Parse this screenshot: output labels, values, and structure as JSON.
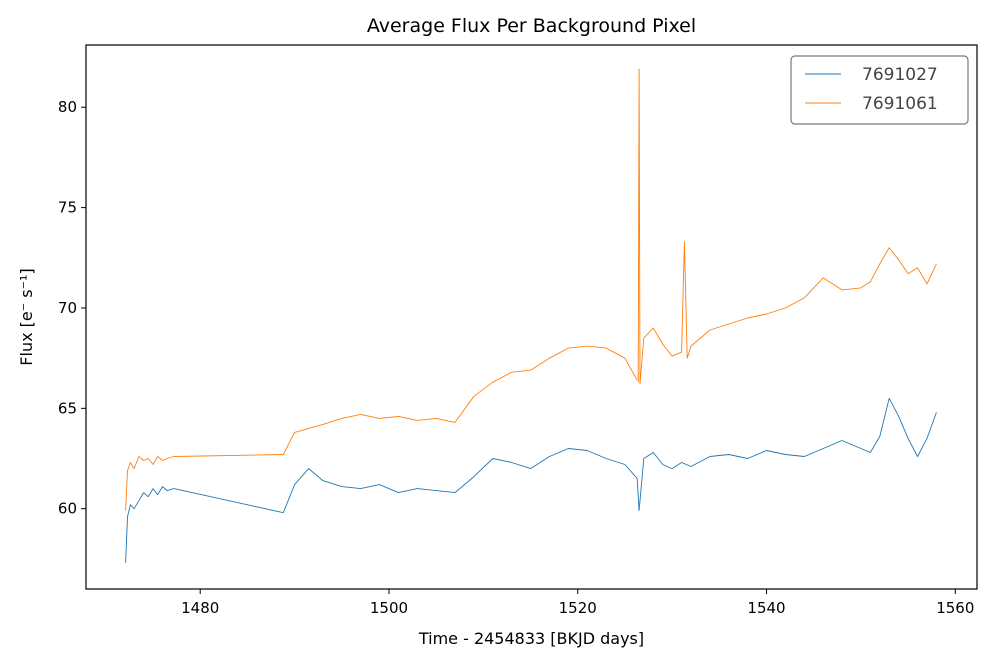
{
  "chart_data": {
    "type": "line",
    "title": "Average Flux Per Background Pixel",
    "xlabel": "Time - 2454833 [BKJD days]",
    "ylabel": "Flux [e⁻ s⁻¹]",
    "xlim": [
      1467.9,
      1562.3
    ],
    "ylim": [
      56.0,
      83.1
    ],
    "xticks": [
      1480,
      1500,
      1520,
      1540,
      1560
    ],
    "yticks": [
      60,
      65,
      70,
      75,
      80
    ],
    "grid": false,
    "legend_position": "top-right",
    "series": [
      {
        "name": "7691027",
        "color": "#1f77b4",
        "segments": [
          {
            "x": [
              1472.1,
              1472.3,
              1472.6,
              1473.0,
              1473.5,
              1474.0,
              1474.5,
              1475.0,
              1475.5,
              1476.0,
              1476.5,
              1477.2
            ],
            "y": [
              57.3,
              59.6,
              60.2,
              60.0,
              60.4,
              60.8,
              60.6,
              61.0,
              60.7,
              61.1,
              60.9,
              61.0
            ]
          },
          {
            "x": [
              1477.2,
              1488.8
            ],
            "y": [
              61.0,
              59.8
            ]
          },
          {
            "x": [
              1488.8,
              1490.0,
              1491.5,
              1493.0,
              1495.0,
              1497.0,
              1499.0,
              1501.0,
              1503.0,
              1505.0,
              1507.0,
              1509.0,
              1511.0,
              1513.0,
              1515.0,
              1517.0,
              1519.0,
              1521.0,
              1523.0,
              1525.0,
              1526.3
            ],
            "y": [
              59.8,
              61.2,
              62.0,
              61.4,
              61.1,
              61.0,
              61.2,
              60.8,
              61.0,
              60.9,
              60.8,
              61.6,
              62.5,
              62.3,
              62.0,
              62.6,
              63.0,
              62.9,
              62.5,
              62.2,
              61.5
            ]
          },
          {
            "x": [
              1526.3,
              1526.5
            ],
            "y": [
              61.5,
              59.9
            ]
          },
          {
            "x": [
              1526.5,
              1527.0,
              1528.0,
              1529.0,
              1530.0,
              1531.0,
              1532.0,
              1534.0,
              1536.0,
              1538.0,
              1540.0,
              1542.0,
              1544.0,
              1546.0,
              1548.0,
              1550.0,
              1551.0,
              1552.0,
              1553.0,
              1554.0,
              1555.0,
              1556.0,
              1557.0,
              1558.0
            ],
            "y": [
              59.9,
              62.5,
              62.8,
              62.2,
              62.0,
              62.3,
              62.1,
              62.6,
              62.7,
              62.5,
              62.9,
              62.7,
              62.6,
              63.0,
              63.4,
              63.0,
              62.8,
              63.6,
              65.5,
              64.6,
              63.5,
              62.6,
              63.5,
              64.8
            ]
          }
        ]
      },
      {
        "name": "7691061",
        "color": "#ff7f0e",
        "segments": [
          {
            "x": [
              1472.1,
              1472.3,
              1472.6,
              1473.0,
              1473.5,
              1474.0,
              1474.5,
              1475.0,
              1475.5,
              1476.0,
              1476.5,
              1477.2
            ],
            "y": [
              59.9,
              61.9,
              62.3,
              62.0,
              62.6,
              62.4,
              62.5,
              62.2,
              62.6,
              62.4,
              62.5,
              62.6
            ]
          },
          {
            "x": [
              1477.2,
              1488.8
            ],
            "y": [
              62.6,
              62.7
            ]
          },
          {
            "x": [
              1488.8,
              1490.0,
              1491.5,
              1493.0,
              1495.0,
              1497.0,
              1499.0,
              1501.0,
              1503.0,
              1505.0,
              1507.0,
              1509.0,
              1511.0,
              1513.0,
              1515.0,
              1517.0,
              1519.0,
              1521.0,
              1523.0,
              1525.0,
              1526.3
            ],
            "y": [
              62.7,
              63.8,
              64.0,
              64.2,
              64.5,
              64.7,
              64.5,
              64.6,
              64.4,
              64.5,
              64.3,
              65.6,
              66.3,
              66.8,
              66.9,
              67.5,
              68.0,
              68.1,
              68.0,
              67.5,
              66.4
            ]
          },
          {
            "x": [
              1526.4,
              1526.5,
              1526.6
            ],
            "y": [
              66.3,
              81.9,
              66.2
            ]
          },
          {
            "x": [
              1526.6,
              1527.0,
              1528.0,
              1529.0,
              1530.0,
              1531.0,
              1531.3,
              1531.6,
              1532.0,
              1534.0,
              1536.0,
              1538.0,
              1540.0,
              1542.0,
              1544.0,
              1546.0,
              1548.0,
              1550.0,
              1551.0,
              1552.0,
              1553.0,
              1554.0,
              1555.0,
              1556.0,
              1557.0,
              1558.0
            ],
            "y": [
              66.2,
              68.5,
              69.0,
              68.2,
              67.6,
              67.8,
              73.3,
              67.5,
              68.1,
              68.9,
              69.2,
              69.5,
              69.7,
              70.0,
              70.5,
              71.5,
              70.9,
              71.0,
              71.3,
              72.2,
              73.0,
              72.4,
              71.7,
              72.0,
              71.2,
              72.2
            ]
          }
        ]
      }
    ]
  }
}
